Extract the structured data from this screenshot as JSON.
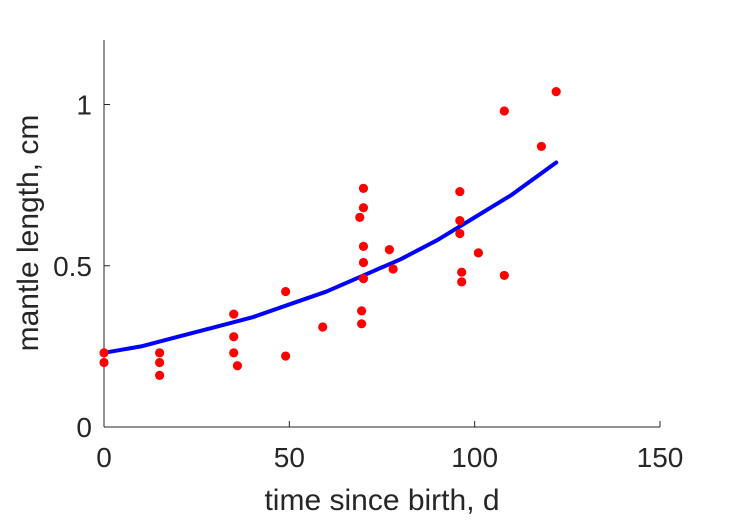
{
  "chart_data": {
    "type": "scatter",
    "title": "",
    "xlabel": "time since birth, d",
    "ylabel": "mantle length, cm",
    "xlim": [
      0,
      150
    ],
    "ylim": [
      0,
      1.2
    ],
    "x_ticks": [
      0,
      50,
      100,
      150
    ],
    "x_tick_labels": [
      "0",
      "50",
      "100",
      "150"
    ],
    "y_ticks": [
      0,
      0.5,
      1
    ],
    "y_tick_labels": [
      "0",
      "0.5",
      "1"
    ],
    "grid": false,
    "legend": "none",
    "series": [
      {
        "kind": "scatter",
        "color": "#ff0000",
        "points": [
          {
            "x": 0,
            "y": 0.23
          },
          {
            "x": 0,
            "y": 0.2
          },
          {
            "x": 15,
            "y": 0.23
          },
          {
            "x": 15,
            "y": 0.2
          },
          {
            "x": 15,
            "y": 0.16
          },
          {
            "x": 35,
            "y": 0.35
          },
          {
            "x": 35,
            "y": 0.28
          },
          {
            "x": 35,
            "y": 0.23
          },
          {
            "x": 36,
            "y": 0.19
          },
          {
            "x": 49,
            "y": 0.42
          },
          {
            "x": 49,
            "y": 0.22
          },
          {
            "x": 59,
            "y": 0.31
          },
          {
            "x": 69,
            "y": 0.65
          },
          {
            "x": 70,
            "y": 0.74
          },
          {
            "x": 70,
            "y": 0.68
          },
          {
            "x": 70,
            "y": 0.56
          },
          {
            "x": 70,
            "y": 0.51
          },
          {
            "x": 70,
            "y": 0.46
          },
          {
            "x": 69.5,
            "y": 0.36
          },
          {
            "x": 69.5,
            "y": 0.32
          },
          {
            "x": 77,
            "y": 0.55
          },
          {
            "x": 78,
            "y": 0.49
          },
          {
            "x": 96,
            "y": 0.73
          },
          {
            "x": 96,
            "y": 0.64
          },
          {
            "x": 96,
            "y": 0.6
          },
          {
            "x": 96.5,
            "y": 0.48
          },
          {
            "x": 96.5,
            "y": 0.45
          },
          {
            "x": 101,
            "y": 0.54
          },
          {
            "x": 108,
            "y": 0.98
          },
          {
            "x": 108,
            "y": 0.47
          },
          {
            "x": 118,
            "y": 0.87
          },
          {
            "x": 122,
            "y": 1.04
          }
        ]
      },
      {
        "kind": "line",
        "color": "#0000ff",
        "points": [
          {
            "x": 0,
            "y": 0.23
          },
          {
            "x": 10,
            "y": 0.25
          },
          {
            "x": 20,
            "y": 0.28
          },
          {
            "x": 30,
            "y": 0.31
          },
          {
            "x": 40,
            "y": 0.34
          },
          {
            "x": 50,
            "y": 0.38
          },
          {
            "x": 60,
            "y": 0.42
          },
          {
            "x": 70,
            "y": 0.47
          },
          {
            "x": 80,
            "y": 0.52
          },
          {
            "x": 90,
            "y": 0.58
          },
          {
            "x": 100,
            "y": 0.65
          },
          {
            "x": 110,
            "y": 0.72
          },
          {
            "x": 122,
            "y": 0.82
          }
        ]
      }
    ]
  }
}
